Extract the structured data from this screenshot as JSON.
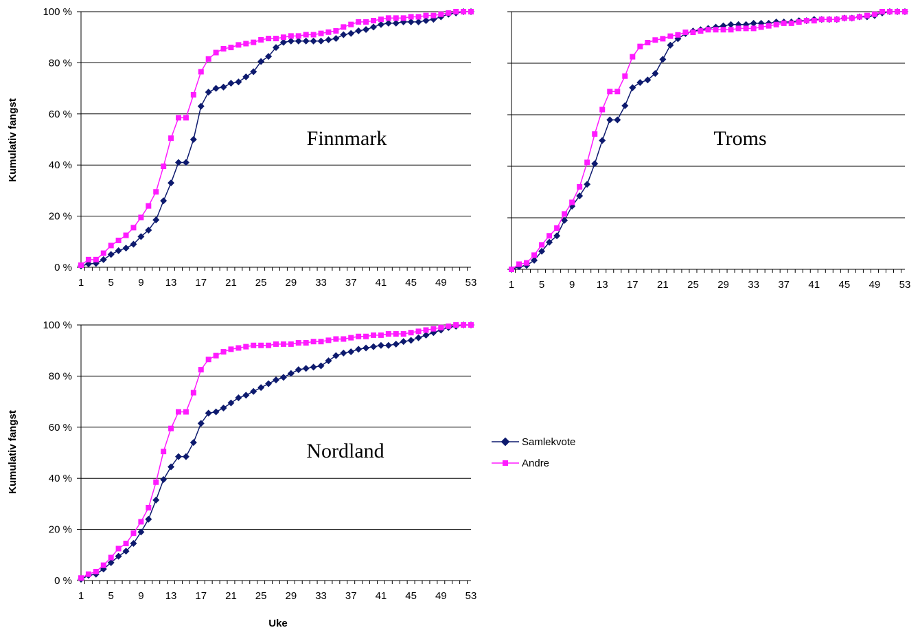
{
  "colors": {
    "samlekvote": "#0d1a6e",
    "andre": "#ff1aff",
    "grid": "#000000"
  },
  "legend": {
    "samlekvote": "Samlekvote",
    "andre": "Andre"
  },
  "chart_data": [
    {
      "type": "line",
      "region_label": "Finnmark",
      "ylabel": "Kumulativ fangst",
      "xlabel": "",
      "xlim": [
        1,
        53
      ],
      "ylim": [
        0,
        100
      ],
      "yticks": [
        "0 %",
        "20 %",
        "40 %",
        "60 %",
        "80 %",
        "100 %"
      ],
      "xticks": [
        "1",
        "5",
        "9",
        "13",
        "17",
        "21",
        "25",
        "29",
        "33",
        "37",
        "41",
        "45",
        "49",
        "53"
      ],
      "grid": "horizontal",
      "series": [
        {
          "name": "Samlekvote",
          "values": [
            0.5,
            1.3,
            1.5,
            3.0,
            5.0,
            6.5,
            7.5,
            9.0,
            12.0,
            14.5,
            18.5,
            26.0,
            33.0,
            41.0,
            41.0,
            50.0,
            63.0,
            68.5,
            70.0,
            70.5,
            72.0,
            72.5,
            74.5,
            76.5,
            80.5,
            82.5,
            86.0,
            88.0,
            88.5,
            88.5,
            88.5,
            88.5,
            88.5,
            89.0,
            89.5,
            91.0,
            91.5,
            92.5,
            93.0,
            94.0,
            95.0,
            95.5,
            95.5,
            96.0,
            96.0,
            96.0,
            96.5,
            97.0,
            98.0,
            99.0,
            99.5,
            100.0,
            100.0
          ]
        },
        {
          "name": "Andre",
          "values": [
            0.8,
            3.0,
            3.0,
            5.5,
            8.5,
            10.5,
            12.5,
            15.5,
            19.5,
            24.0,
            29.5,
            39.5,
            50.5,
            58.5,
            58.5,
            67.5,
            76.5,
            81.5,
            84.0,
            85.5,
            86.0,
            87.0,
            87.5,
            88.0,
            89.0,
            89.5,
            89.5,
            90.0,
            90.5,
            90.5,
            91.0,
            91.0,
            91.5,
            92.0,
            92.5,
            94.0,
            95.0,
            96.0,
            96.0,
            96.5,
            97.0,
            97.5,
            97.5,
            97.5,
            98.0,
            98.0,
            98.5,
            98.5,
            99.0,
            99.5,
            100.0,
            100.0,
            100.0
          ]
        }
      ]
    },
    {
      "type": "line",
      "region_label": "Troms",
      "ylabel": "",
      "xlabel": "",
      "xlim": [
        1,
        53
      ],
      "ylim": [
        0,
        100
      ],
      "yticks": [],
      "xticks": [
        "1",
        "5",
        "9",
        "13",
        "17",
        "21",
        "25",
        "29",
        "33",
        "37",
        "41",
        "45",
        "49",
        "53"
      ],
      "grid": "horizontal",
      "series": [
        {
          "name": "Samlekvote",
          "values": [
            0.0,
            1.0,
            1.5,
            3.5,
            7.0,
            10.5,
            13.0,
            19.0,
            24.5,
            28.5,
            33.0,
            41.0,
            50.0,
            58.0,
            58.0,
            63.5,
            70.5,
            72.5,
            73.5,
            76.0,
            81.5,
            87.0,
            89.5,
            91.5,
            92.5,
            93.0,
            93.5,
            94.0,
            94.5,
            95.0,
            95.0,
            95.0,
            95.5,
            95.5,
            95.5,
            96.0,
            96.0,
            96.0,
            96.5,
            96.5,
            97.0,
            97.0,
            97.0,
            97.0,
            97.5,
            97.5,
            98.0,
            98.0,
            98.5,
            99.5,
            100.0,
            100.0,
            100.0
          ]
        },
        {
          "name": "Andre",
          "values": [
            0.0,
            2.0,
            2.5,
            5.5,
            9.5,
            13.0,
            16.0,
            21.5,
            26.0,
            32.0,
            41.5,
            52.5,
            62.0,
            69.0,
            69.0,
            75.0,
            82.5,
            86.5,
            88.0,
            89.0,
            89.5,
            90.5,
            91.0,
            92.0,
            92.0,
            92.5,
            93.0,
            93.0,
            93.0,
            93.0,
            93.5,
            93.5,
            93.5,
            94.0,
            94.5,
            95.0,
            95.5,
            95.5,
            96.0,
            96.5,
            96.5,
            97.0,
            97.0,
            97.0,
            97.5,
            97.5,
            98.0,
            98.5,
            99.0,
            100.0,
            100.0,
            100.0,
            100.0
          ]
        }
      ]
    },
    {
      "type": "line",
      "region_label": "Nordland",
      "ylabel": "Kumulativ fangst",
      "xlabel": "Uke",
      "xlim": [
        1,
        53
      ],
      "ylim": [
        0,
        100
      ],
      "yticks": [
        "0 %",
        "20 %",
        "40 %",
        "60 %",
        "80 %",
        "100 %"
      ],
      "xticks": [
        "1",
        "5",
        "9",
        "13",
        "17",
        "21",
        "25",
        "29",
        "33",
        "37",
        "41",
        "45",
        "49",
        "53"
      ],
      "grid": "horizontal",
      "series": [
        {
          "name": "Samlekvote",
          "values": [
            0.5,
            2.0,
            2.5,
            4.5,
            7.0,
            9.5,
            11.5,
            14.5,
            19.0,
            24.0,
            31.5,
            39.5,
            44.5,
            48.5,
            48.5,
            54.0,
            61.5,
            65.5,
            66.0,
            67.5,
            69.5,
            71.5,
            72.5,
            74.0,
            75.5,
            77.0,
            78.5,
            79.5,
            81.0,
            82.5,
            83.0,
            83.5,
            84.0,
            86.0,
            88.0,
            89.0,
            89.5,
            90.5,
            91.0,
            91.5,
            92.0,
            92.0,
            92.5,
            93.5,
            94.0,
            95.0,
            96.0,
            97.0,
            98.0,
            99.0,
            99.5,
            100.0,
            100.0
          ]
        },
        {
          "name": "Andre",
          "values": [
            1.0,
            2.5,
            3.5,
            6.0,
            9.0,
            12.5,
            14.5,
            18.5,
            23.0,
            28.5,
            38.5,
            50.5,
            59.5,
            66.0,
            66.0,
            73.5,
            82.5,
            86.5,
            88.0,
            89.5,
            90.5,
            91.0,
            91.5,
            92.0,
            92.0,
            92.0,
            92.5,
            92.5,
            92.5,
            93.0,
            93.0,
            93.5,
            93.5,
            94.0,
            94.5,
            94.5,
            95.0,
            95.5,
            95.5,
            96.0,
            96.0,
            96.5,
            96.5,
            96.5,
            97.0,
            97.5,
            98.0,
            98.5,
            99.0,
            99.5,
            100.0,
            100.0,
            100.0
          ]
        }
      ]
    }
  ]
}
